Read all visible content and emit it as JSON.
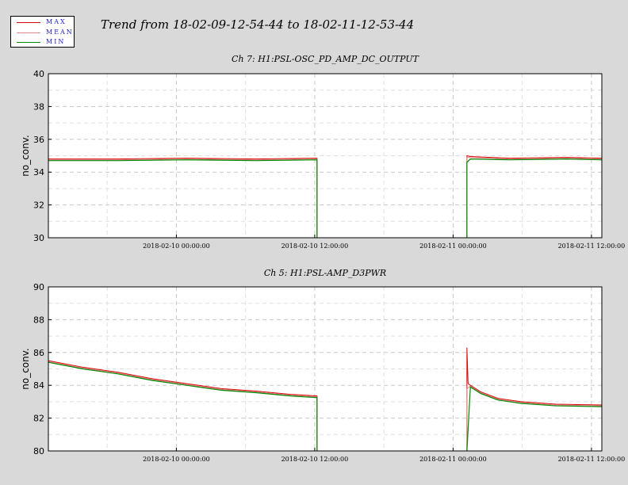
{
  "title": "Trend from 18-02-09-12-54-44 to 18-02-11-12-53-44",
  "legend": [
    {
      "label": "MAX",
      "color": "#dd0000"
    },
    {
      "label": "MEAN",
      "color": "#dd8888"
    },
    {
      "label": "MIN",
      "color": "#008800"
    }
  ],
  "chart_data": [
    {
      "type": "line",
      "title": "Ch 7: H1:PSL-OSC_PD_AMP_DC_OUTPUT",
      "ylabel": "no_conv.",
      "xlabel": "",
      "ylim": [
        30,
        40
      ],
      "yticks": [
        30,
        32,
        34,
        36,
        38,
        40
      ],
      "xticks": [
        "2018-02-10 00:00:00",
        "2018-02-10 12:00:00",
        "2018-02-11 00:00:00",
        "2018-02-11 12:00:00"
      ],
      "grid": true,
      "x_unit": "hours since 2018-02-09 12:54:44",
      "series": [
        {
          "name": "MAX",
          "x": [
            0,
            6,
            12,
            18,
            23.3
          ],
          "y": [
            34.8,
            34.8,
            34.85,
            34.8,
            34.85
          ]
        },
        {
          "name": "MEAN",
          "x": [
            0,
            6,
            12,
            18,
            23.3
          ],
          "y": [
            34.75,
            34.75,
            34.8,
            34.75,
            34.8
          ]
        },
        {
          "name": "MIN",
          "x": [
            0,
            6,
            12,
            18,
            23.3
          ],
          "y": [
            34.7,
            34.7,
            34.75,
            34.7,
            34.75
          ]
        },
        {
          "name": "MAX",
          "x": [
            36.3,
            36.6,
            40,
            45,
            48
          ],
          "y": [
            35.0,
            34.95,
            34.85,
            34.9,
            34.85
          ]
        },
        {
          "name": "MEAN",
          "x": [
            36.3,
            36.6,
            40,
            45,
            48
          ],
          "y": [
            34.9,
            34.9,
            34.8,
            34.85,
            34.8
          ]
        },
        {
          "name": "MIN",
          "x": [
            36.3,
            36.6,
            40,
            45,
            48
          ],
          "y": [
            34.6,
            34.8,
            34.75,
            34.8,
            34.75
          ]
        }
      ]
    },
    {
      "type": "line",
      "title": "Ch 5: H1:PSL-AMP_D3PWR",
      "ylabel": "no_conv.",
      "xlabel": "",
      "ylim": [
        80,
        90
      ],
      "yticks": [
        80,
        82,
        84,
        86,
        88,
        90
      ],
      "xticks": [
        "2018-02-10 00:00:00",
        "2018-02-10 12:00:00",
        "2018-02-11 00:00:00",
        "2018-02-11 12:00:00"
      ],
      "grid": true,
      "series": [
        {
          "name": "MAX",
          "x": [
            0,
            3,
            6,
            9,
            12,
            15,
            18,
            21,
            23.3
          ],
          "y": [
            85.5,
            85.1,
            84.8,
            84.4,
            84.1,
            83.8,
            83.65,
            83.45,
            83.35
          ]
        },
        {
          "name": "MEAN",
          "x": [
            0,
            3,
            6,
            9,
            12,
            15,
            18,
            21,
            23.3
          ],
          "y": [
            85.45,
            85.05,
            84.75,
            84.35,
            84.05,
            83.75,
            83.6,
            83.4,
            83.3
          ]
        },
        {
          "name": "MIN",
          "x": [
            0,
            3,
            6,
            9,
            12,
            15,
            18,
            21,
            23.3
          ],
          "y": [
            85.4,
            85.0,
            84.7,
            84.3,
            84.0,
            83.7,
            83.55,
            83.35,
            83.25
          ]
        },
        {
          "name": "MAX",
          "x": [
            36.3,
            36.4,
            36.6,
            37.5,
            39,
            41,
            44,
            48
          ],
          "y": [
            86.3,
            84.1,
            84.0,
            83.6,
            83.2,
            83.0,
            82.85,
            82.8
          ]
        },
        {
          "name": "MEAN",
          "x": [
            36.3,
            36.6,
            37.5,
            39,
            41,
            44,
            48
          ],
          "y": [
            83.8,
            83.95,
            83.55,
            83.15,
            82.95,
            82.8,
            82.75
          ]
        },
        {
          "name": "MIN",
          "x": [
            36.3,
            36.6,
            37.5,
            39,
            41,
            44,
            48
          ],
          "y": [
            80.0,
            83.9,
            83.5,
            83.1,
            82.9,
            82.75,
            82.7
          ]
        }
      ]
    }
  ]
}
